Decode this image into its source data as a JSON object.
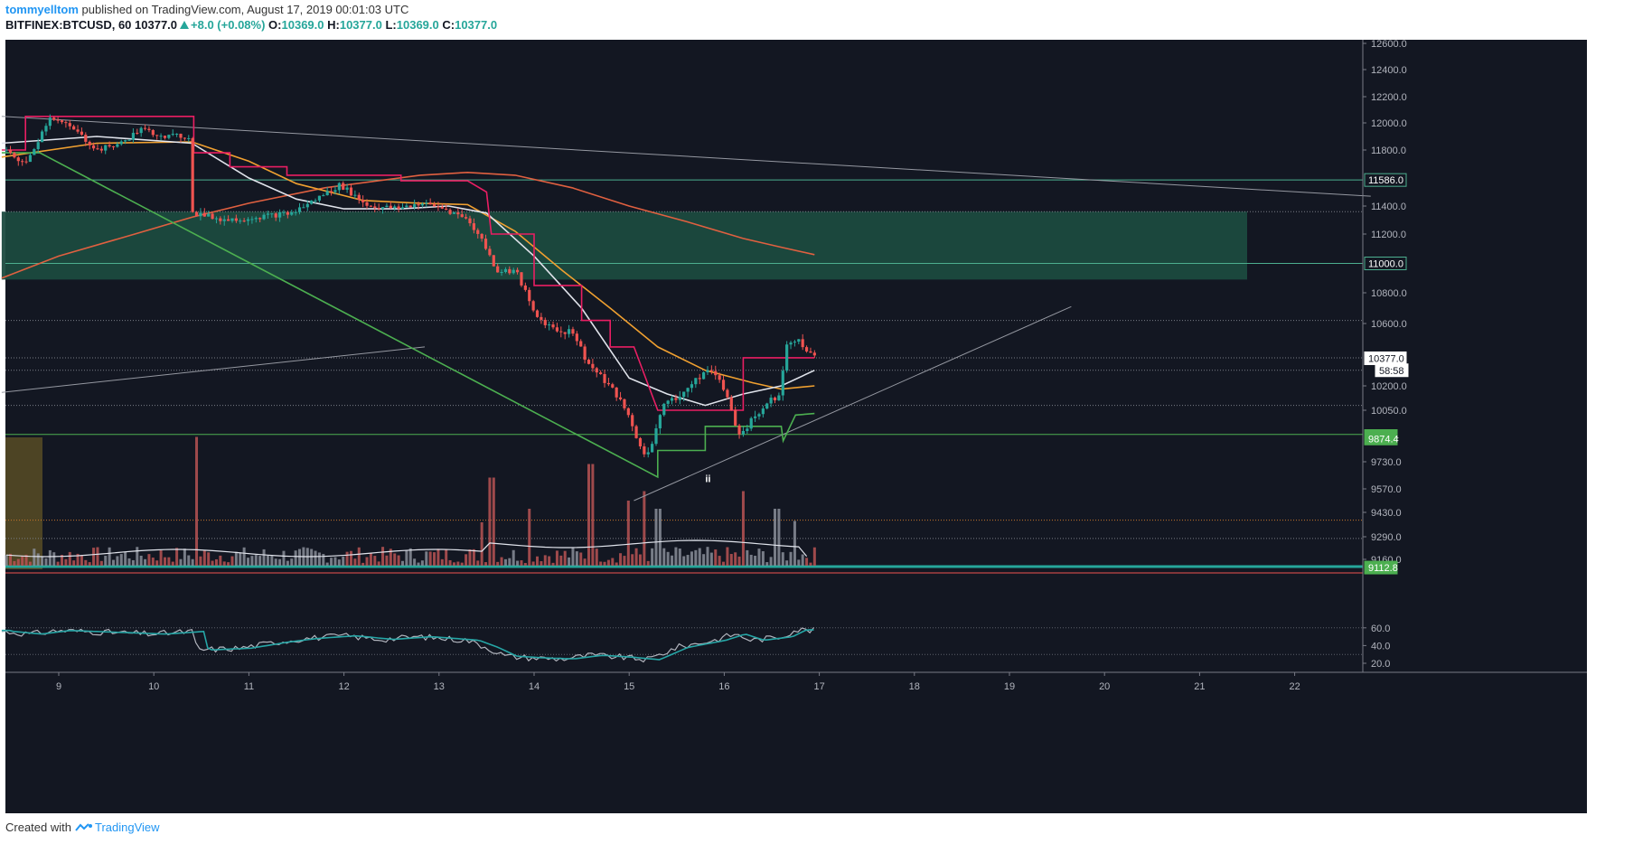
{
  "header": {
    "author": "tommyelltom",
    "published_text": "published on TradingView.com, August 17, 2019 00:01:03 UTC",
    "symbol": "BITFINEX:BTCUSD, 60",
    "last": "10377.0",
    "change": "+8.0 (+0.08%)",
    "o_label": "O:",
    "o_value": "10369.0",
    "h_label": "H:",
    "h_value": "10377.0",
    "l_label": "L:",
    "l_value": "10369.0",
    "c_label": "C:",
    "c_value": "10377.0"
  },
  "footer": {
    "created_with": "Created with",
    "brand": "TradingView"
  },
  "colors": {
    "background": "#131722",
    "up": "#26a69a",
    "down": "#ef5350",
    "grid_dotted": "#5d606b",
    "zone_fill": "#1b4a3f",
    "zone_line": "#4caf8f",
    "ema_white": "#e0e3eb",
    "ema_orange": "#f0a030",
    "ema_red": "#e06040",
    "stop_pink": "#e91e63",
    "stop_green": "#4caf50",
    "rsi_line": "#b2b5be",
    "rsi_ma": "#26a6a6",
    "yellow_box": "#4d4424"
  },
  "chart_data": {
    "type": "candlestick",
    "symbol": "BITFINEX:BTCUSD",
    "interval": "60",
    "x_ticks": [
      "9",
      "10",
      "11",
      "12",
      "13",
      "14",
      "15",
      "16",
      "17",
      "18",
      "19",
      "20",
      "21",
      "22"
    ],
    "price_ticks": [
      "12600.0",
      "12400.0",
      "12200.0",
      "12000.0",
      "11800.0",
      "11400.0",
      "11200.0",
      "10800.0",
      "10600.0",
      "10200.0",
      "10050.0",
      "9730.0",
      "9570.0",
      "9430.0",
      "9290.0",
      "9160.0"
    ],
    "price_tags": [
      {
        "label": "11586.0",
        "price": 11586,
        "style": "outline"
      },
      {
        "label": "11000.0",
        "price": 11000,
        "style": "outline"
      },
      {
        "label": "10377.0",
        "price": 10377,
        "style": "white"
      },
      {
        "label": "58:58",
        "price": 10300,
        "style": "white"
      },
      {
        "label": "9874.4",
        "price": 9890,
        "style": "green"
      },
      {
        "label": "9874.4",
        "price": 9874.4,
        "style": "green"
      },
      {
        "label": "9112.8",
        "price": 9112.8,
        "style": "green"
      }
    ],
    "rsi_ticks": [
      "60.0",
      "40.0",
      "20.0"
    ],
    "annotation": "ii",
    "zone": {
      "day_from": 8.4,
      "day_to": 21.5,
      "price_low": 10890,
      "price_high": 11360
    },
    "hlines": [
      {
        "price": 11586,
        "style": "solid"
      },
      {
        "price": 11000,
        "style": "solid"
      },
      {
        "price": 11360,
        "style": "dotted"
      },
      {
        "price": 10620,
        "style": "dotted"
      },
      {
        "price": 10380,
        "style": "dotted"
      },
      {
        "price": 10300,
        "style": "dotted"
      },
      {
        "price": 10080,
        "style": "dotted"
      },
      {
        "price": 9900,
        "style": "solid-green"
      },
      {
        "price": 9385,
        "style": "dotted-orange"
      },
      {
        "price": 9280,
        "style": "dotted"
      }
    ],
    "trendlines": [
      {
        "d1": 8.4,
        "p1": 12050,
        "d2": 22.8,
        "p2": 11470
      },
      {
        "d1": 8.4,
        "p1": 10160,
        "d2": 12.85,
        "p2": 10450
      },
      {
        "d1": 15.05,
        "p1": 9500,
        "d2": 19.65,
        "p2": 10710
      }
    ],
    "candle_keypoints": [
      [
        8.45,
        11800
      ],
      [
        8.7,
        11700
      ],
      [
        8.95,
        12050
      ],
      [
        9.2,
        11950
      ],
      [
        9.45,
        11800
      ],
      [
        9.7,
        11850
      ],
      [
        9.9,
        11950
      ],
      [
        10.2,
        11900
      ],
      [
        10.42,
        11900
      ],
      [
        10.45,
        11350
      ],
      [
        10.8,
        11300
      ],
      [
        11.1,
        11320
      ],
      [
        11.5,
        11350
      ],
      [
        11.75,
        11450
      ],
      [
        12.0,
        11550
      ],
      [
        12.3,
        11400
      ],
      [
        12.6,
        11380
      ],
      [
        12.85,
        11420
      ],
      [
        13.1,
        11380
      ],
      [
        13.35,
        11300
      ],
      [
        13.5,
        11150
      ],
      [
        13.65,
        10950
      ],
      [
        13.85,
        10950
      ],
      [
        14.05,
        10650
      ],
      [
        14.3,
        10550
      ],
      [
        14.45,
        10550
      ],
      [
        14.6,
        10350
      ],
      [
        14.75,
        10250
      ],
      [
        14.9,
        10150
      ],
      [
        15.05,
        10000
      ],
      [
        15.18,
        9780
      ],
      [
        15.28,
        9820
      ],
      [
        15.4,
        10100
      ],
      [
        15.6,
        10150
      ],
      [
        15.85,
        10300
      ],
      [
        16.0,
        10250
      ],
      [
        16.2,
        9900
      ],
      [
        16.35,
        10000
      ],
      [
        16.5,
        10100
      ],
      [
        16.62,
        10150
      ],
      [
        16.7,
        10480
      ],
      [
        16.85,
        10480
      ],
      [
        16.95,
        10400
      ]
    ],
    "ema_white": [
      [
        8.4,
        11850
      ],
      [
        9.4,
        11900
      ],
      [
        10.4,
        11850
      ],
      [
        11.0,
        11600
      ],
      [
        11.5,
        11450
      ],
      [
        12.0,
        11380
      ],
      [
        12.6,
        11380
      ],
      [
        13.1,
        11400
      ],
      [
        13.5,
        11350
      ],
      [
        14.0,
        11050
      ],
      [
        14.5,
        10700
      ],
      [
        15.0,
        10250
      ],
      [
        15.4,
        10150
      ],
      [
        15.8,
        10080
      ],
      [
        16.2,
        10150
      ],
      [
        16.6,
        10200
      ],
      [
        16.95,
        10300
      ]
    ],
    "ema_orange": [
      [
        8.4,
        11750
      ],
      [
        9.4,
        11850
      ],
      [
        10.4,
        11860
      ],
      [
        11.0,
        11720
      ],
      [
        11.5,
        11560
      ],
      [
        12.2,
        11440
      ],
      [
        12.8,
        11420
      ],
      [
        13.3,
        11410
      ],
      [
        13.8,
        11220
      ],
      [
        14.3,
        10950
      ],
      [
        14.8,
        10700
      ],
      [
        15.3,
        10450
      ],
      [
        15.8,
        10300
      ],
      [
        16.3,
        10220
      ],
      [
        16.6,
        10180
      ],
      [
        16.95,
        10200
      ]
    ],
    "ema_red": [
      [
        8.4,
        10900
      ],
      [
        9.0,
        11050
      ],
      [
        9.8,
        11200
      ],
      [
        10.4,
        11320
      ],
      [
        11.0,
        11420
      ],
      [
        11.8,
        11530
      ],
      [
        12.8,
        11620
      ],
      [
        13.3,
        11640
      ],
      [
        13.8,
        11620
      ],
      [
        14.4,
        11530
      ],
      [
        15.0,
        11400
      ],
      [
        15.6,
        11290
      ],
      [
        16.2,
        11170
      ],
      [
        16.6,
        11110
      ],
      [
        16.95,
        11060
      ]
    ],
    "stop_pink": [
      [
        8.4,
        11800
      ],
      [
        8.65,
        11800
      ],
      [
        8.65,
        12050
      ],
      [
        10.42,
        12050
      ],
      [
        10.42,
        11780
      ],
      [
        10.8,
        11780
      ],
      [
        10.8,
        11680
      ],
      [
        11.4,
        11680
      ],
      [
        11.4,
        11620
      ],
      [
        12.6,
        11620
      ],
      [
        12.6,
        11580
      ],
      [
        13.3,
        11580
      ],
      [
        13.5,
        11500
      ],
      [
        13.55,
        11200
      ],
      [
        14.0,
        11200
      ],
      [
        14.0,
        10850
      ],
      [
        14.5,
        10850
      ],
      [
        14.5,
        10620
      ],
      [
        14.8,
        10620
      ],
      [
        14.8,
        10450
      ],
      [
        15.05,
        10450
      ],
      [
        15.3,
        10050
      ],
      [
        15.6,
        10050
      ],
      [
        16.2,
        10050
      ],
      [
        16.2,
        10380
      ],
      [
        16.95,
        10380
      ]
    ],
    "stop_green": [
      [
        8.4,
        11780
      ],
      [
        8.8,
        11780
      ],
      [
        15.3,
        9640
      ],
      [
        15.3,
        9800
      ],
      [
        15.8,
        9800
      ],
      [
        15.8,
        9950
      ],
      [
        16.2,
        9950
      ],
      [
        16.6,
        9950
      ],
      [
        16.62,
        9860
      ],
      [
        16.75,
        10020
      ],
      [
        16.95,
        10030
      ]
    ],
    "volume_spikes": [
      [
        10.44,
        0.95
      ],
      [
        13.45,
        0.32
      ],
      [
        13.55,
        0.65
      ],
      [
        13.95,
        0.42
      ],
      [
        14.6,
        0.75
      ],
      [
        15.0,
        0.48
      ],
      [
        15.15,
        0.55
      ],
      [
        15.3,
        0.42
      ],
      [
        16.2,
        0.55
      ],
      [
        16.55,
        0.42
      ],
      [
        16.75,
        0.33
      ]
    ],
    "rsi_keypoints": [
      [
        8.4,
        56
      ],
      [
        8.7,
        53
      ],
      [
        9.0,
        57
      ],
      [
        9.5,
        55
      ],
      [
        10.0,
        53
      ],
      [
        10.42,
        56
      ],
      [
        10.45,
        35
      ],
      [
        10.9,
        37
      ],
      [
        11.3,
        44
      ],
      [
        11.6,
        48
      ],
      [
        12.0,
        51
      ],
      [
        12.4,
        47
      ],
      [
        12.8,
        50
      ],
      [
        13.3,
        46
      ],
      [
        13.5,
        38
      ],
      [
        13.7,
        28
      ],
      [
        14.0,
        26
      ],
      [
        14.3,
        25
      ],
      [
        14.6,
        29
      ],
      [
        14.9,
        27
      ],
      [
        15.2,
        24
      ],
      [
        15.5,
        38
      ],
      [
        15.9,
        46
      ],
      [
        16.1,
        53
      ],
      [
        16.3,
        46
      ],
      [
        16.6,
        50
      ],
      [
        16.75,
        58
      ],
      [
        16.95,
        57
      ]
    ]
  }
}
